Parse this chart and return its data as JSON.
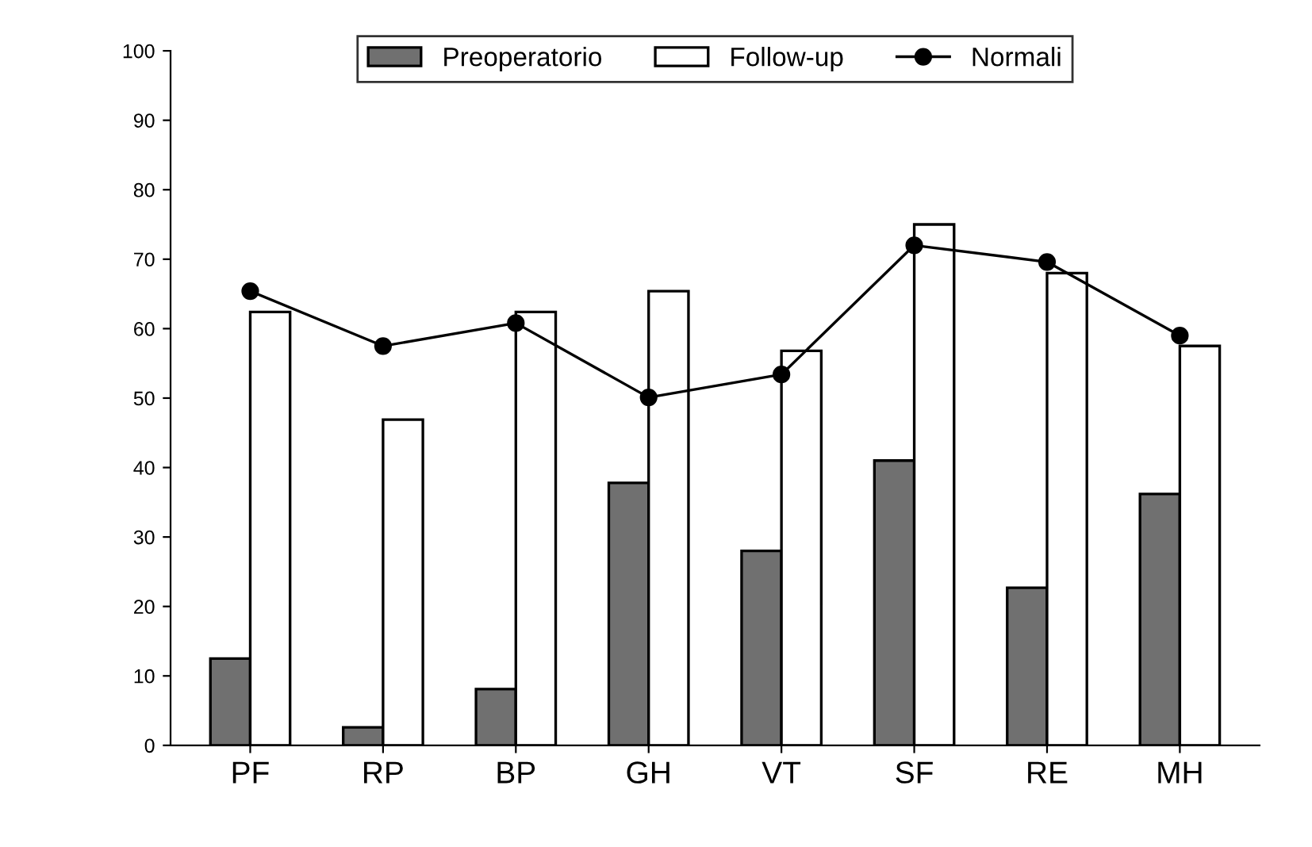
{
  "chart_data": {
    "type": "bar",
    "categories": [
      "PF",
      "RP",
      "BP",
      "GH",
      "VT",
      "SF",
      "RE",
      "MH"
    ],
    "series": [
      {
        "name": "Preoperatorio",
        "color": "#707070",
        "values": [
          12.5,
          2.6,
          8.1,
          37.8,
          28,
          41,
          22.7,
          36.2
        ]
      },
      {
        "name": "Follow-up",
        "color": "#ffffff",
        "values": [
          62.4,
          46.9,
          62.4,
          65.4,
          56.8,
          75,
          68,
          57.5
        ]
      },
      {
        "name": "Normali",
        "type": "line",
        "color": "#000000",
        "marker": "circle",
        "values": [
          65.4,
          57.5,
          60.8,
          50.1,
          53.4,
          72,
          69.6,
          59
        ]
      }
    ],
    "ylim": [
      0,
      100
    ],
    "yticks": [
      0,
      10,
      20,
      30,
      40,
      50,
      60,
      70,
      80,
      90,
      100
    ],
    "grid": false,
    "legend": "top"
  }
}
